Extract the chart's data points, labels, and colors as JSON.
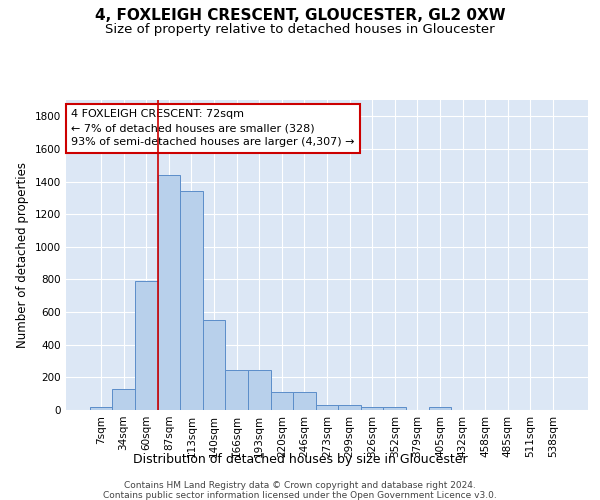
{
  "title1": "4, FOXLEIGH CRESCENT, GLOUCESTER, GL2 0XW",
  "title2": "Size of property relative to detached houses in Gloucester",
  "xlabel": "Distribution of detached houses by size in Gloucester",
  "ylabel": "Number of detached properties",
  "categories": [
    "7sqm",
    "34sqm",
    "60sqm",
    "87sqm",
    "113sqm",
    "140sqm",
    "166sqm",
    "193sqm",
    "220sqm",
    "246sqm",
    "273sqm",
    "299sqm",
    "326sqm",
    "352sqm",
    "379sqm",
    "405sqm",
    "432sqm",
    "458sqm",
    "485sqm",
    "511sqm",
    "538sqm"
  ],
  "values": [
    20,
    130,
    790,
    1440,
    1340,
    550,
    245,
    245,
    110,
    110,
    30,
    30,
    20,
    20,
    0,
    20,
    0,
    0,
    0,
    0,
    0
  ],
  "bar_color": "#b8d0eb",
  "bar_edge_color": "#5b8dc9",
  "background_color": "#dce7f5",
  "grid_color": "#ffffff",
  "vline_x_index": 3,
  "vline_color": "#cc0000",
  "ylim": [
    0,
    1900
  ],
  "yticks": [
    0,
    200,
    400,
    600,
    800,
    1000,
    1200,
    1400,
    1600,
    1800
  ],
  "annotation_text": "4 FOXLEIGH CRESCENT: 72sqm\n← 7% of detached houses are smaller (328)\n93% of semi-detached houses are larger (4,307) →",
  "annotation_box_color": "#ffffff",
  "annotation_border_color": "#cc0000",
  "footer1": "Contains HM Land Registry data © Crown copyright and database right 2024.",
  "footer2": "Contains public sector information licensed under the Open Government Licence v3.0.",
  "title1_fontsize": 11,
  "title2_fontsize": 9.5,
  "xlabel_fontsize": 9,
  "ylabel_fontsize": 8.5,
  "tick_fontsize": 7.5,
  "annotation_fontsize": 8,
  "footer_fontsize": 6.5
}
